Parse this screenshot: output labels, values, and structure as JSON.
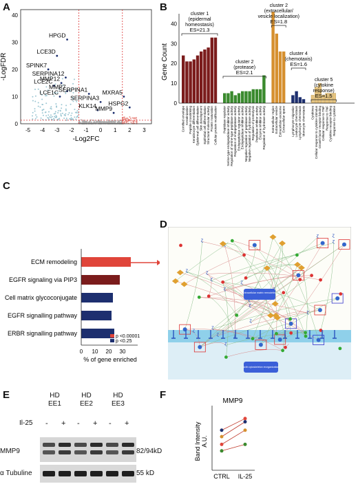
{
  "panels": {
    "A": "A",
    "B": "B",
    "C": "C",
    "D": "D",
    "E": "E",
    "F": "F"
  },
  "volcano": {
    "ylabel": "-LogFDR",
    "xlabel": "-Log2FC",
    "yticks": [
      "40",
      "30",
      "20",
      "10",
      "0"
    ],
    "xticks": [
      "-5",
      "-4",
      "-3",
      "-2",
      "-1",
      "0",
      "1",
      "2",
      "3"
    ],
    "genes": [
      "HPGD",
      "LCE3D",
      "SPINK7",
      "SERPINA12",
      "LCE2C",
      "LCE1C",
      "MMP12",
      "MMP7",
      "SERPINA1",
      "SERPINA3",
      "KLK14",
      "MMP9",
      "MXRA5",
      "HSPG2"
    ]
  },
  "bar_b": {
    "ylabel": "Gene Count",
    "yticks": [
      "40",
      "30",
      "20",
      "10",
      "0"
    ],
    "clusters": [
      {
        "title": "cluster 1\n(epidermal\nhomeostasis)",
        "es": "ES=21.3"
      },
      {
        "title": "cluster 2\n(protease)",
        "es": "ES=2.1"
      },
      {
        "title": "cluster 2\n(extracellular/\nvesicle localization)",
        "es": "ES=1.8"
      },
      {
        "title": "cluster 4\n(chemotaxis)",
        "es": "ES=1.6"
      },
      {
        "title": "cluster 5\n(cytokine\nresponse)",
        "es": "ES=1.5"
      }
    ]
  },
  "enrich_c": {
    "xlabel": "% of gene enriched",
    "xticks": [
      "0",
      "10",
      "20",
      "30"
    ],
    "legend": [
      "p <0.00001",
      "p <0.25"
    ],
    "items": [
      "ECM remodeling",
      "EGFR signaling via PIP3",
      "Cell matrix glycoconjugate",
      "EGFR signalling pathway",
      "ERBR signalling pathway"
    ]
  },
  "pathway_d": {
    "nodes": [
      "Extracellular matrix remodeling",
      "Actin cytoskeleton reorganization"
    ]
  },
  "western_e": {
    "samples": [
      "HD\nEE1",
      "HD\nEE2",
      "HD\nEE3"
    ],
    "treatment": "Il-25",
    "signs": [
      "-",
      "+",
      "-",
      "+",
      "-",
      "+"
    ],
    "rows": [
      "MMP9",
      "α Tubuline"
    ],
    "sizes": [
      "82/94kD",
      "55 kD"
    ]
  },
  "band_f": {
    "title": "MMP9",
    "ylabel": "Band Intensity\nA.U.",
    "xticks": [
      "CTRL",
      "IL-25"
    ]
  },
  "colors": {
    "up": "#e0453a",
    "down": "#1d2f6f",
    "green": "#3a8a2e",
    "orange": "#d6902f",
    "maroon": "#7b1c1c"
  },
  "chart_data": [
    {
      "type": "scatter",
      "panel": "A",
      "xlabel": "-Log2FC",
      "ylabel": "-LogFDR",
      "xlim": [
        -5.5,
        3.5
      ],
      "ylim": [
        0,
        42
      ],
      "thresholds": {
        "x": [
          -1.5,
          1.5
        ],
        "y": 1.3
      },
      "labeled_points": [
        {
          "gene": "HPGD",
          "x": -2.3,
          "y": 31
        },
        {
          "gene": "LCE3D",
          "x": -3.0,
          "y": 25
        },
        {
          "gene": "SPINK7",
          "x": -3.6,
          "y": 20
        },
        {
          "gene": "SERPINA12",
          "x": -2.4,
          "y": 17
        },
        {
          "gene": "LCE2C",
          "x": -3.2,
          "y": 14
        },
        {
          "gene": "LCE1C",
          "x": -2.8,
          "y": 10
        },
        {
          "gene": "MMP12",
          "x": -2.7,
          "y": 15
        },
        {
          "gene": "MMP7",
          "x": -2.3,
          "y": 12
        },
        {
          "gene": "SERPINA1",
          "x": -0.8,
          "y": 11
        },
        {
          "gene": "SERPINA3",
          "x": 0.0,
          "y": 8
        },
        {
          "gene": "KLK14",
          "x": -0.2,
          "y": 5
        },
        {
          "gene": "MMP9",
          "x": 0.9,
          "y": 4
        },
        {
          "gene": "MXRA5",
          "x": 1.6,
          "y": 10
        },
        {
          "gene": "HSPG2",
          "x": 2.0,
          "y": 6
        }
      ]
    },
    {
      "type": "bar",
      "panel": "B",
      "ylabel": "Gene Count",
      "ylim": [
        0,
        45
      ],
      "categories": [
        "Cornified envelope",
        "Keratinization",
        "Peptide crosslinking",
        "Keratinocyte differentiation",
        "Epidermal cell differentiation",
        "Skin development",
        "Epithelial cell differentiation",
        "Structural molecular activity",
        "Protein maturation",
        "Cellular protein modification",
        "Peptidase regulator",
        "Serine-type endopeptidase inhibitor activity",
        "Regulation of serine-type peptidase activity",
        "Regulation of endopeptidase activity",
        "Endopeptidase regulator activity",
        "Endopeptidase inhibitor activity",
        "Negative regulation of peptidase activity",
        "Negative regulation of hydrolase activity",
        "Regulation of proteolysis",
        "Peptidase inhibitor activity",
        "Enzyme inhibitor activity",
        "Regulation of hydrolase activity",
        "Extracellular region",
        "Extracellular vesicle",
        "Extracellular exosome",
        "Extracellular space",
        "Lymphocyte migration",
        "Leukocyte chemotaxis",
        "Lymphocyte chemotaxis",
        "Monocyte chemotaxis",
        "Cytokines",
        "Cellular response to cytokine stimulus",
        "Growth factor receptor binding",
        "Cellular response to TNF",
        "Response to TNF",
        "Cytokine receptor binding",
        "Response to cytokine"
      ],
      "values": [
        24,
        21,
        21,
        22,
        24,
        26,
        27,
        28,
        33,
        33,
        5,
        5,
        6,
        4,
        5,
        6,
        6,
        6,
        7,
        7,
        7,
        14,
        46,
        35,
        26,
        26,
        4,
        6,
        3,
        2,
        4,
        8,
        10,
        4,
        5,
        5,
        5
      ],
      "clusters": [
        {
          "name": "cluster 1 (epidermal homeostasis)",
          "es": 21.3
        },
        {
          "name": "cluster 2 (protease)",
          "es": 2.1
        },
        {
          "name": "cluster 2 (extracellular/vesicle localization)",
          "es": 1.8
        },
        {
          "name": "cluster 4 (chemotaxis)",
          "es": 1.6
        },
        {
          "name": "cluster 5 (cytokine response)",
          "es": 1.5
        }
      ]
    },
    {
      "type": "bar",
      "panel": "C",
      "orientation": "horizontal",
      "xlabel": "% of gene enriched",
      "xlim": [
        0,
        40
      ],
      "categories": [
        "ECM remodeling",
        "EGFR signaling via PIP3",
        "Cell matrix glycoconjugate",
        "EGFR signalling pathway",
        "ERBR signalling pathway"
      ],
      "values": [
        36,
        28,
        23,
        22,
        24
      ]
    },
    {
      "type": "line",
      "panel": "F",
      "title": "MMP9",
      "ylabel": "Band Intensity A.U.",
      "categories": [
        "CTRL",
        "IL-25"
      ],
      "series": [
        {
          "values": [
            0.62,
            0.8
          ]
        },
        {
          "values": [
            0.52,
            0.75
          ]
        },
        {
          "values": [
            0.4,
            0.62
          ]
        },
        {
          "values": [
            0.3,
            0.4
          ]
        }
      ]
    }
  ]
}
